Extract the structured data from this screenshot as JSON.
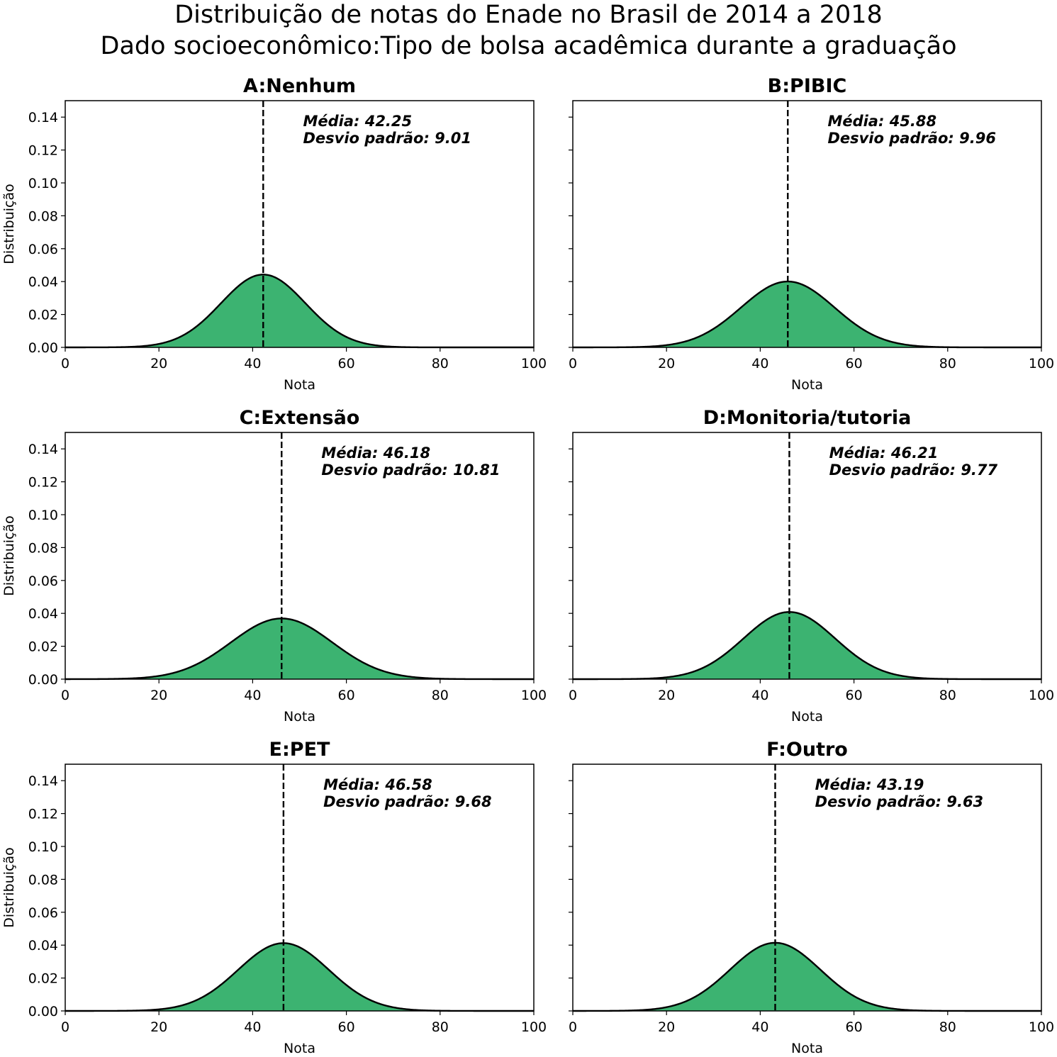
{
  "figure": {
    "title_line1": "Distribuição de notas do Enade no Brasil de 2014 a 2018",
    "title_line2": "Dado socioeconômico:Tipo de bolsa acadêmica durante a graduação"
  },
  "colors": {
    "fill": "#3cb371",
    "curve": "#000000",
    "mean_line": "#000000",
    "axes": "#000000"
  },
  "chart_data": [
    {
      "type": "area",
      "title": "A:Nenhum",
      "xlabel": "Nota",
      "ylabel": "Distribuição",
      "xlim": [
        0,
        100
      ],
      "ylim": [
        0,
        0.15
      ],
      "xticks": [
        "0",
        "20",
        "40",
        "60",
        "80",
        "100"
      ],
      "yticks": [
        "0.00",
        "0.02",
        "0.04",
        "0.06",
        "0.08",
        "0.10",
        "0.12",
        "0.14"
      ],
      "mean": 42.25,
      "std": 9.01,
      "annotation_mean": "Média: 42.25",
      "annotation_std": "Desvio padrão: 9.01",
      "grid": false
    },
    {
      "type": "area",
      "title": "B:PIBIC",
      "xlabel": "Nota",
      "ylabel": "",
      "xlim": [
        0,
        100
      ],
      "ylim": [
        0,
        0.15
      ],
      "xticks": [
        "0",
        "20",
        "40",
        "60",
        "80",
        "100"
      ],
      "yticks": [],
      "mean": 45.88,
      "std": 9.96,
      "annotation_mean": "Média: 45.88",
      "annotation_std": "Desvio padrão: 9.96",
      "grid": false
    },
    {
      "type": "area",
      "title": "C:Extensão",
      "xlabel": "Nota",
      "ylabel": "Distribuição",
      "xlim": [
        0,
        100
      ],
      "ylim": [
        0,
        0.15
      ],
      "xticks": [
        "0",
        "20",
        "40",
        "60",
        "80",
        "100"
      ],
      "yticks": [
        "0.00",
        "0.02",
        "0.04",
        "0.06",
        "0.08",
        "0.10",
        "0.12",
        "0.14"
      ],
      "mean": 46.18,
      "std": 10.81,
      "annotation_mean": "Média: 46.18",
      "annotation_std": "Desvio padrão: 10.81",
      "grid": false
    },
    {
      "type": "area",
      "title": "D:Monitoria/tutoria",
      "xlabel": "Nota",
      "ylabel": "",
      "xlim": [
        0,
        100
      ],
      "ylim": [
        0,
        0.15
      ],
      "xticks": [
        "0",
        "20",
        "40",
        "60",
        "80",
        "100"
      ],
      "yticks": [],
      "mean": 46.21,
      "std": 9.77,
      "annotation_mean": "Média: 46.21",
      "annotation_std": "Desvio padrão: 9.77",
      "grid": false
    },
    {
      "type": "area",
      "title": "E:PET",
      "xlabel": "Nota",
      "ylabel": "Distribuição",
      "xlim": [
        0,
        100
      ],
      "ylim": [
        0,
        0.15
      ],
      "xticks": [
        "0",
        "20",
        "40",
        "60",
        "80",
        "100"
      ],
      "yticks": [
        "0.00",
        "0.02",
        "0.04",
        "0.06",
        "0.08",
        "0.10",
        "0.12",
        "0.14"
      ],
      "mean": 46.58,
      "std": 9.68,
      "annotation_mean": "Média: 46.58",
      "annotation_std": "Desvio padrão: 9.68",
      "grid": false
    },
    {
      "type": "area",
      "title": "F:Outro",
      "xlabel": "Nota",
      "ylabel": "",
      "xlim": [
        0,
        100
      ],
      "ylim": [
        0,
        0.15
      ],
      "xticks": [
        "0",
        "20",
        "40",
        "60",
        "80",
        "100"
      ],
      "yticks": [],
      "mean": 43.19,
      "std": 9.63,
      "annotation_mean": "Média: 43.19",
      "annotation_std": "Desvio padrão: 9.63",
      "grid": false
    }
  ]
}
